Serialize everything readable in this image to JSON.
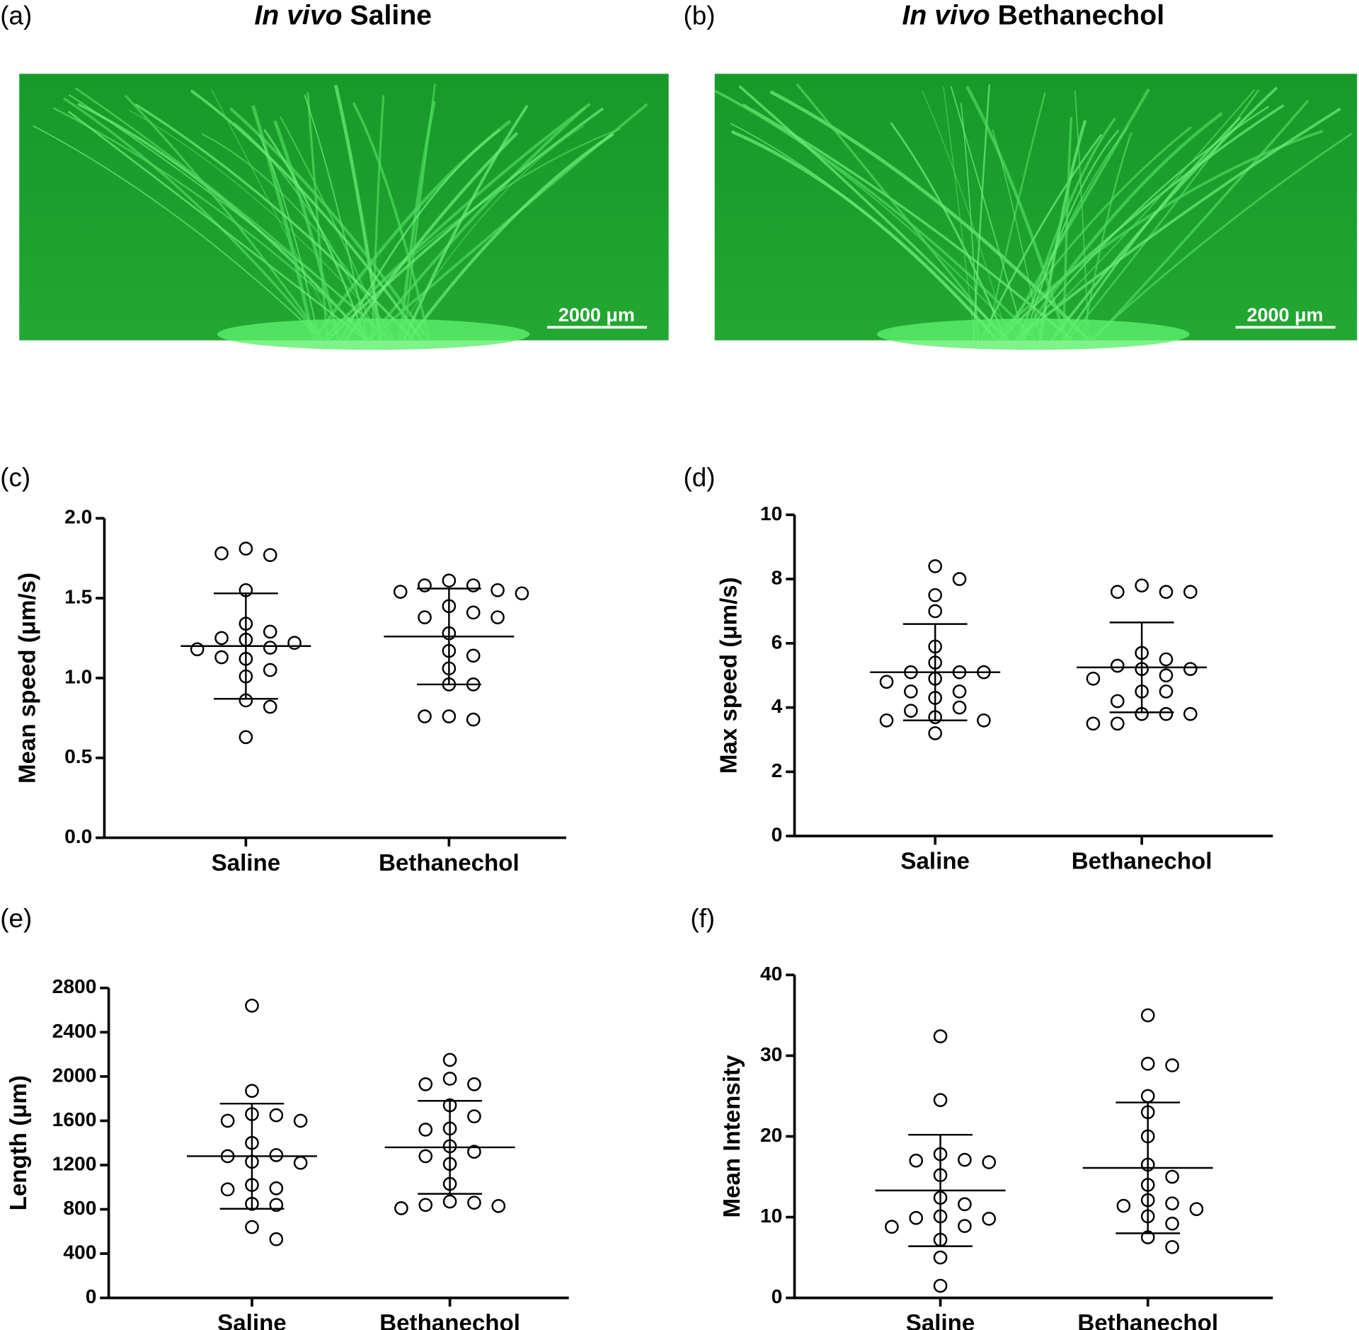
{
  "images": [
    {
      "label": "(a)",
      "title_prefix": "In vivo",
      "title": "Saline",
      "scale_bar": "2000 μm"
    },
    {
      "label": "(b)",
      "title_prefix": "In vivo",
      "title": "Bethanechol",
      "scale_bar": "2000 μm"
    }
  ],
  "chart_data": [
    {
      "type": "scatter",
      "panel_label": "(c)",
      "y_label": "Mean speed (μm/s)",
      "categories": [
        "Saline",
        "Bethanechol"
      ],
      "values": [
        [
          1.81,
          1.77,
          1.78,
          1.55,
          1.34,
          1.29,
          1.25,
          1.24,
          1.22,
          1.19,
          1.18,
          1.12,
          1.13,
          1.05,
          1.01,
          0.86,
          0.82,
          0.63
        ],
        [
          1.61,
          1.58,
          1.58,
          1.55,
          1.54,
          1.53,
          1.45,
          1.41,
          1.38,
          1.38,
          1.28,
          1.17,
          1.14,
          1.06,
          0.96,
          0.96,
          0.76,
          0.74,
          0.76
        ]
      ],
      "mean": [
        1.2,
        1.26
      ],
      "sd": [
        0.33,
        0.3
      ],
      "ylim": [
        0,
        2
      ],
      "yticks": [
        {
          "value": 0,
          "label": "0.0"
        },
        0.5,
        {
          "value": 1,
          "label": "1.0"
        },
        1.5,
        {
          "value": 2,
          "label": "2.0"
        }
      ]
    },
    {
      "type": "scatter",
      "panel_label": "(d)",
      "y_label": "Max speed (μm/s)",
      "categories": [
        "Saline",
        "Bethanechol"
      ],
      "values": [
        [
          8.4,
          8.0,
          7.5,
          7.0,
          5.9,
          5.4,
          5.1,
          5.1,
          5.1,
          4.9,
          4.8,
          4.5,
          4.5,
          4.3,
          4.0,
          3.9,
          3.7,
          3.6,
          3.6,
          3.2
        ],
        [
          7.8,
          7.6,
          7.6,
          7.6,
          5.7,
          5.5,
          5.3,
          5.2,
          5.2,
          5.0,
          4.9,
          4.5,
          4.5,
          4.2,
          3.8,
          3.8,
          3.8,
          3.5,
          3.5
        ]
      ],
      "mean": [
        5.1,
        5.25
      ],
      "sd": [
        1.5,
        1.4
      ],
      "ylim": [
        0,
        10
      ],
      "yticks": [
        0,
        2,
        4,
        6,
        8,
        10
      ]
    },
    {
      "type": "scatter",
      "panel_label": "(e)",
      "y_label": "Length (μm)",
      "categories": [
        "Saline",
        "Bethanechol"
      ],
      "values": [
        [
          2640,
          1870,
          1660,
          1650,
          1600,
          1600,
          1400,
          1290,
          1280,
          1230,
          1220,
          1020,
          990,
          980,
          850,
          840,
          640,
          530
        ],
        [
          2150,
          1980,
          1930,
          1930,
          1740,
          1640,
          1530,
          1520,
          1370,
          1320,
          1280,
          1210,
          1030,
          870,
          860,
          840,
          830,
          810
        ]
      ],
      "mean": [
        1280,
        1360
      ],
      "sd": [
        475,
        420
      ],
      "ylim": [
        0,
        2800
      ],
      "yticks": [
        0,
        400,
        800,
        1200,
        1600,
        2000,
        2400,
        2800
      ]
    },
    {
      "type": "scatter",
      "panel_label": "(f)",
      "y_label": "Mean Intensity",
      "categories": [
        "Saline",
        "Bethanechol"
      ],
      "values": [
        [
          32.4,
          24.5,
          17.8,
          17.1,
          17.0,
          16.8,
          15.2,
          12.4,
          11.6,
          10.1,
          9.9,
          9.8,
          8.9,
          8.8,
          7.2,
          5.0,
          1.5
        ],
        [
          35.0,
          29.0,
          28.8,
          25.0,
          23.0,
          20.0,
          16.5,
          15.0,
          14.0,
          12.1,
          11.7,
          11.4,
          11.0,
          10.1,
          9.2,
          7.5,
          6.3
        ]
      ],
      "mean": [
        13.3,
        16.1
      ],
      "sd": [
        6.9,
        8.1
      ],
      "ylim": [
        0,
        40
      ],
      "yticks": [
        0,
        10,
        20,
        30,
        40
      ]
    }
  ]
}
